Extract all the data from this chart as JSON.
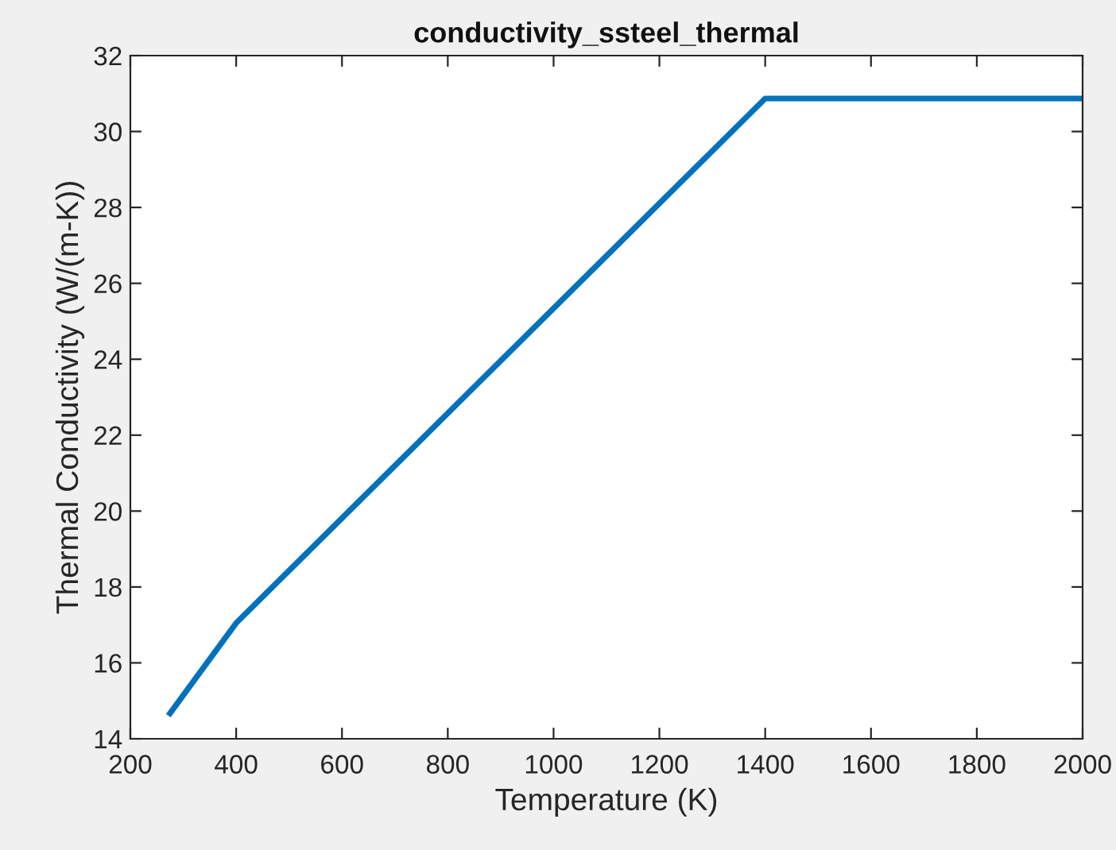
{
  "chart_data": {
    "type": "line",
    "title": "conductivity_ssteel_thermal",
    "xlabel": "Temperature (K)",
    "ylabel": "Thermal Conductivity (W/(m-K))",
    "x": [
      275,
      400,
      1400,
      2000
    ],
    "series": [
      {
        "color": "#0072bd",
        "values": [
          14.67,
          17.05,
          30.87,
          30.87
        ]
      }
    ],
    "xlim": [
      200,
      2000
    ],
    "xticks": [
      200,
      400,
      600,
      800,
      1000,
      1200,
      1400,
      1600,
      1800,
      2000
    ],
    "ylim": [
      14,
      32
    ],
    "yticks": [
      14,
      16,
      18,
      20,
      22,
      24,
      26,
      28,
      30,
      32
    ],
    "grid": false,
    "marker": "none",
    "line_style": "solid"
  }
}
